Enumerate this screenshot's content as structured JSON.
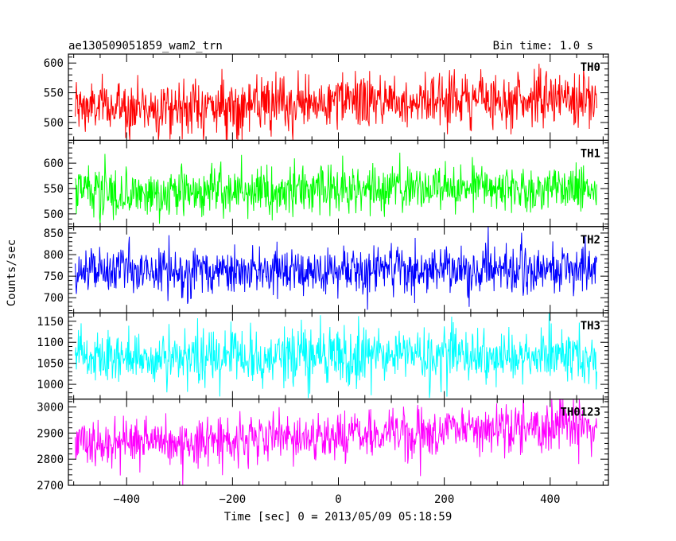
{
  "chart_data": {
    "type": "line",
    "title": "ae130509051859_wam2_trn",
    "bin_time": "Bin time: 1.0 s",
    "xlabel": "Time [sec] 0 = 2013/05/09 05:18:59",
    "ylabel": "Counts/sec",
    "xlim": [
      -510,
      510
    ],
    "x_ticks": [
      -400,
      -200,
      0,
      200,
      400
    ],
    "x_tick_labels": [
      "−400",
      "−200",
      "0",
      "200",
      "400"
    ],
    "x_data_range": [
      -497,
      488
    ],
    "bin_size": 1.0,
    "panels": [
      {
        "name": "TH0",
        "color": "#ff0000",
        "ylim": [
          470,
          615
        ],
        "y_ticks": [
          500,
          550,
          600
        ],
        "y_tick_labels": [
          "500",
          "550",
          "600"
        ],
        "trend": [
          [
            -497,
            525
          ],
          [
            -300,
            527
          ],
          [
            -100,
            527
          ],
          [
            0,
            535
          ],
          [
            200,
            540
          ],
          [
            488,
            540
          ]
        ],
        "noise_sd": 23
      },
      {
        "name": "TH1",
        "color": "#00ff00",
        "ylim": [
          475,
          645
        ],
        "y_ticks": [
          500,
          550,
          600
        ],
        "y_tick_labels": [
          "500",
          "550",
          "600"
        ],
        "trend": [
          [
            -497,
            545
          ],
          [
            -300,
            540
          ],
          [
            0,
            548
          ],
          [
            200,
            550
          ],
          [
            488,
            550
          ]
        ],
        "noise_sd": 24
      },
      {
        "name": "TH2",
        "color": "#0000ff",
        "ylim": [
          665,
          865
        ],
        "y_ticks": [
          700,
          750,
          800,
          850
        ],
        "y_tick_labels": [
          "700",
          "750",
          "800",
          "850"
        ],
        "trend": [
          [
            -497,
            758
          ],
          [
            -200,
            760
          ],
          [
            0,
            762
          ],
          [
            200,
            765
          ],
          [
            488,
            765
          ]
        ],
        "noise_sd": 28
      },
      {
        "name": "TH3",
        "color": "#00ffff",
        "ylim": [
          965,
          1170
        ],
        "y_ticks": [
          1000,
          1050,
          1100,
          1150
        ],
        "y_tick_labels": [
          "1000",
          "1050",
          "1100",
          "1150"
        ],
        "trend": [
          [
            -497,
            1062
          ],
          [
            -200,
            1065
          ],
          [
            0,
            1068
          ],
          [
            200,
            1068
          ],
          [
            488,
            1066
          ]
        ],
        "noise_sd": 32
      },
      {
        "name": "TH0123",
        "color": "#ff00ff",
        "ylim": [
          2700,
          3030
        ],
        "y_ticks": [
          2700,
          2800,
          2900,
          3000
        ],
        "y_tick_labels": [
          "2700",
          "2800",
          "2900",
          "3000"
        ],
        "trend": [
          [
            -497,
            2865
          ],
          [
            -300,
            2870
          ],
          [
            -100,
            2885
          ],
          [
            100,
            2900
          ],
          [
            300,
            2925
          ],
          [
            488,
            2925
          ]
        ],
        "noise_sd": 48
      }
    ],
    "grid": false,
    "legend": "none"
  }
}
